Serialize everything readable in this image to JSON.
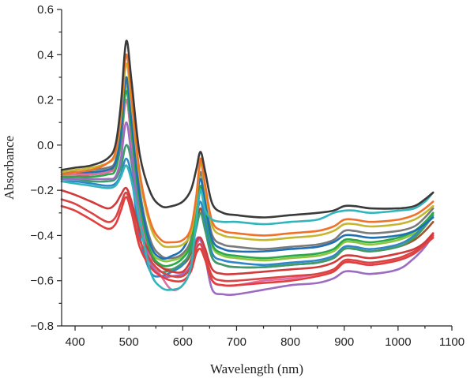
{
  "chart_data": {
    "type": "line",
    "xlabel": "Wavelength (nm)",
    "ylabel": "Absorbance",
    "xlim": [
      375,
      1100
    ],
    "ylim": [
      -0.8,
      0.6
    ],
    "xticks": [
      400,
      500,
      600,
      700,
      800,
      900,
      1000,
      1100
    ],
    "yticks": [
      -0.8,
      -0.6,
      -0.4,
      -0.2,
      0.0,
      0.2,
      0.4,
      0.6
    ],
    "xtick_labels": [
      "400",
      "500",
      "600",
      "700",
      "800",
      "900",
      "1000",
      "1100"
    ],
    "ytick_labels": [
      "−0.8",
      "−0.6",
      "−0.4",
      "−0.2",
      "0.0",
      "0.2",
      "0.4",
      "0.6"
    ],
    "grid": false,
    "legend": "none",
    "x": [
      375,
      400,
      430,
      460,
      475,
      485,
      495,
      505,
      520,
      540,
      560,
      580,
      600,
      615,
      625,
      633,
      642,
      655,
      675,
      700,
      750,
      800,
      850,
      880,
      900,
      920,
      950,
      1000,
      1030,
      1050,
      1065
    ],
    "series": [
      {
        "color": "#3a3a3a",
        "values": [
          -0.11,
          -0.1,
          -0.09,
          -0.06,
          0.0,
          0.18,
          0.46,
          0.28,
          -0.04,
          -0.21,
          -0.27,
          -0.27,
          -0.25,
          -0.2,
          -0.11,
          -0.03,
          -0.12,
          -0.26,
          -0.3,
          -0.31,
          -0.32,
          -0.31,
          -0.3,
          -0.29,
          -0.27,
          -0.27,
          -0.28,
          -0.28,
          -0.27,
          -0.24,
          -0.21
        ]
      },
      {
        "color": "#31b5bb",
        "values": [
          -0.16,
          -0.17,
          -0.18,
          -0.19,
          -0.18,
          -0.14,
          -0.09,
          -0.16,
          -0.34,
          -0.56,
          -0.63,
          -0.64,
          -0.62,
          -0.54,
          -0.34,
          -0.2,
          -0.29,
          -0.33,
          -0.34,
          -0.34,
          -0.35,
          -0.34,
          -0.33,
          -0.3,
          -0.29,
          -0.29,
          -0.3,
          -0.29,
          -0.28,
          -0.25,
          -0.21
        ]
      },
      {
        "color": "#f0722a",
        "values": [
          -0.13,
          -0.12,
          -0.11,
          -0.08,
          -0.03,
          0.14,
          0.4,
          0.21,
          -0.12,
          -0.34,
          -0.42,
          -0.43,
          -0.42,
          -0.37,
          -0.23,
          -0.06,
          -0.18,
          -0.34,
          -0.38,
          -0.39,
          -0.4,
          -0.39,
          -0.38,
          -0.36,
          -0.33,
          -0.33,
          -0.34,
          -0.33,
          -0.31,
          -0.28,
          -0.25
        ]
      },
      {
        "color": "#c5b62f",
        "values": [
          -0.12,
          -0.11,
          -0.1,
          -0.08,
          -0.04,
          0.12,
          0.36,
          0.18,
          -0.14,
          -0.36,
          -0.44,
          -0.45,
          -0.44,
          -0.39,
          -0.25,
          -0.08,
          -0.2,
          -0.36,
          -0.4,
          -0.41,
          -0.42,
          -0.41,
          -0.4,
          -0.38,
          -0.35,
          -0.35,
          -0.36,
          -0.35,
          -0.33,
          -0.3,
          -0.27
        ]
      },
      {
        "color": "#1f6fb4",
        "values": [
          -0.12,
          -0.12,
          -0.12,
          -0.11,
          -0.08,
          0.05,
          0.3,
          0.1,
          -0.22,
          -0.44,
          -0.5,
          -0.49,
          -0.46,
          -0.38,
          -0.24,
          -0.15,
          -0.26,
          -0.42,
          -0.46,
          -0.47,
          -0.47,
          -0.46,
          -0.45,
          -0.43,
          -0.4,
          -0.4,
          -0.41,
          -0.4,
          -0.38,
          -0.35,
          -0.32
        ]
      },
      {
        "color": "#2aa84a",
        "values": [
          -0.14,
          -0.14,
          -0.14,
          -0.13,
          -0.11,
          0.02,
          0.24,
          0.05,
          -0.26,
          -0.47,
          -0.53,
          -0.53,
          -0.5,
          -0.44,
          -0.3,
          -0.18,
          -0.29,
          -0.44,
          -0.48,
          -0.49,
          -0.5,
          -0.49,
          -0.48,
          -0.46,
          -0.42,
          -0.42,
          -0.43,
          -0.41,
          -0.38,
          -0.34,
          -0.3
        ]
      },
      {
        "color": "#d13a3a",
        "values": [
          -0.2,
          -0.22,
          -0.25,
          -0.28,
          -0.26,
          -0.22,
          -0.19,
          -0.25,
          -0.38,
          -0.48,
          -0.54,
          -0.56,
          -0.56,
          -0.51,
          -0.43,
          -0.41,
          -0.46,
          -0.55,
          -0.57,
          -0.57,
          -0.56,
          -0.55,
          -0.54,
          -0.52,
          -0.49,
          -0.49,
          -0.5,
          -0.48,
          -0.46,
          -0.43,
          -0.39
        ]
      },
      {
        "color": "#d94545",
        "values": [
          -0.24,
          -0.26,
          -0.3,
          -0.34,
          -0.32,
          -0.26,
          -0.21,
          -0.28,
          -0.42,
          -0.51,
          -0.56,
          -0.58,
          -0.58,
          -0.54,
          -0.46,
          -0.44,
          -0.49,
          -0.58,
          -0.6,
          -0.6,
          -0.59,
          -0.58,
          -0.57,
          -0.55,
          -0.51,
          -0.51,
          -0.52,
          -0.5,
          -0.47,
          -0.44,
          -0.4
        ]
      },
      {
        "color": "#e23e3e",
        "values": [
          -0.27,
          -0.29,
          -0.33,
          -0.37,
          -0.35,
          -0.29,
          -0.23,
          -0.3,
          -0.45,
          -0.54,
          -0.58,
          -0.6,
          -0.6,
          -0.56,
          -0.48,
          -0.46,
          -0.51,
          -0.6,
          -0.62,
          -0.62,
          -0.61,
          -0.6,
          -0.58,
          -0.56,
          -0.52,
          -0.52,
          -0.53,
          -0.51,
          -0.48,
          -0.44,
          -0.41
        ]
      },
      {
        "color": "#9b6cc2",
        "values": [
          -0.15,
          -0.15,
          -0.15,
          -0.15,
          -0.14,
          -0.06,
          0.1,
          -0.05,
          -0.33,
          -0.52,
          -0.58,
          -0.58,
          -0.57,
          -0.53,
          -0.42,
          -0.42,
          -0.5,
          -0.64,
          -0.66,
          -0.66,
          -0.64,
          -0.62,
          -0.61,
          -0.59,
          -0.56,
          -0.56,
          -0.57,
          -0.55,
          -0.5,
          -0.45,
          -0.4
        ]
      },
      {
        "color": "#e06fa4",
        "values": [
          -0.13,
          -0.13,
          -0.13,
          -0.12,
          -0.1,
          0.0,
          0.2,
          0.02,
          -0.3,
          -0.5,
          -0.58,
          -0.64,
          -0.62,
          -0.55,
          -0.45,
          -0.42,
          -0.48,
          -0.6,
          -0.62,
          -0.62,
          -0.6,
          -0.59,
          -0.57,
          -0.55,
          -0.52,
          -0.52,
          -0.53,
          -0.51,
          -0.48,
          -0.43,
          -0.39
        ]
      },
      {
        "color": "#7a7a7a",
        "values": [
          -0.12,
          -0.12,
          -0.11,
          -0.1,
          -0.07,
          0.08,
          0.28,
          0.12,
          -0.2,
          -0.42,
          -0.49,
          -0.5,
          -0.48,
          -0.42,
          -0.28,
          -0.12,
          -0.24,
          -0.4,
          -0.44,
          -0.45,
          -0.46,
          -0.45,
          -0.44,
          -0.42,
          -0.38,
          -0.38,
          -0.39,
          -0.38,
          -0.36,
          -0.32,
          -0.28
        ]
      },
      {
        "color": "#3c9d6b",
        "values": [
          -0.15,
          -0.15,
          -0.16,
          -0.16,
          -0.15,
          -0.1,
          0.0,
          -0.08,
          -0.35,
          -0.52,
          -0.56,
          -0.55,
          -0.52,
          -0.47,
          -0.37,
          -0.3,
          -0.38,
          -0.5,
          -0.53,
          -0.54,
          -0.54,
          -0.53,
          -0.52,
          -0.5,
          -0.46,
          -0.46,
          -0.47,
          -0.45,
          -0.41,
          -0.36,
          -0.31
        ]
      },
      {
        "color": "#2f86c9",
        "values": [
          -0.16,
          -0.16,
          -0.17,
          -0.18,
          -0.17,
          -0.13,
          -0.06,
          -0.14,
          -0.4,
          -0.56,
          -0.58,
          -0.56,
          -0.53,
          -0.46,
          -0.32,
          -0.25,
          -0.34,
          -0.48,
          -0.51,
          -0.52,
          -0.53,
          -0.52,
          -0.51,
          -0.49,
          -0.45,
          -0.45,
          -0.46,
          -0.44,
          -0.4,
          -0.35,
          -0.3
        ]
      },
      {
        "color": "#8cc63f",
        "values": [
          -0.13,
          -0.13,
          -0.12,
          -0.11,
          -0.08,
          0.06,
          0.26,
          0.08,
          -0.24,
          -0.46,
          -0.51,
          -0.51,
          -0.49,
          -0.43,
          -0.3,
          -0.2,
          -0.3,
          -0.45,
          -0.49,
          -0.5,
          -0.51,
          -0.5,
          -0.49,
          -0.47,
          -0.43,
          -0.43,
          -0.44,
          -0.42,
          -0.39,
          -0.35,
          -0.31
        ]
      },
      {
        "color": "#a0522d",
        "values": [
          -0.14,
          -0.14,
          -0.13,
          -0.12,
          -0.09,
          0.04,
          0.2,
          0.03,
          -0.28,
          -0.48,
          -0.54,
          -0.55,
          -0.53,
          -0.48,
          -0.36,
          -0.28,
          -0.37,
          -0.5,
          -0.53,
          -0.54,
          -0.54,
          -0.53,
          -0.52,
          -0.5,
          -0.46,
          -0.46,
          -0.47,
          -0.45,
          -0.42,
          -0.38,
          -0.34
        ]
      }
    ]
  }
}
